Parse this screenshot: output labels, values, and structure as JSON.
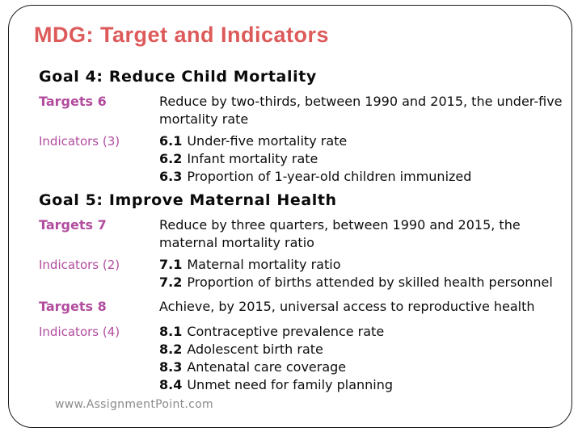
{
  "slide": {
    "title": "MDG: Target and Indicators",
    "watermark": "www.AssignmentPoint.com",
    "colors": {
      "title": "#dd5a5a",
      "label": "#b24c9e",
      "heading": "#0a0a0a",
      "body": "#0d0d0d",
      "watermark": "#8b8b8b",
      "border": "#1b1b1b"
    },
    "sections": [
      {
        "heading": "Goal 4: Reduce Child Mortality",
        "rows": [
          {
            "label": "Targets 6",
            "text": "Reduce by two-thirds, between 1990 and 2015, the under-five mortality rate"
          },
          {
            "label": "Indicators (3)",
            "items": [
              {
                "num": "6.1",
                "text": "Under-five mortality rate"
              },
              {
                "num": "6.2",
                "text": "Infant mortality rate"
              },
              {
                "num": "6.3",
                "text": "Proportion of 1-year-old children immunized"
              }
            ]
          }
        ]
      },
      {
        "heading": "Goal 5: Improve Maternal Health",
        "rows": [
          {
            "label": "Targets 7",
            "text": "Reduce by three quarters, between 1990 and 2015, the maternal mortality ratio"
          },
          {
            "label": "Indicators (2)",
            "items": [
              {
                "num": "7.1",
                "text": "Maternal mortality ratio"
              },
              {
                "num": "7.2",
                "text": "Proportion of births attended by skilled health personnel"
              }
            ]
          },
          {
            "label": "Targets 8",
            "text": "Achieve, by 2015, universal access to reproductive health"
          },
          {
            "label": "Indicators (4)",
            "items": [
              {
                "num": "8.1",
                "text": "Contraceptive prevalence rate"
              },
              {
                "num": "8.2",
                "text": "Adolescent birth rate"
              },
              {
                "num": "8.3",
                "text": "Antenatal care coverage"
              },
              {
                "num": "8.4",
                "text": "Unmet need for family planning"
              }
            ]
          }
        ]
      }
    ]
  }
}
